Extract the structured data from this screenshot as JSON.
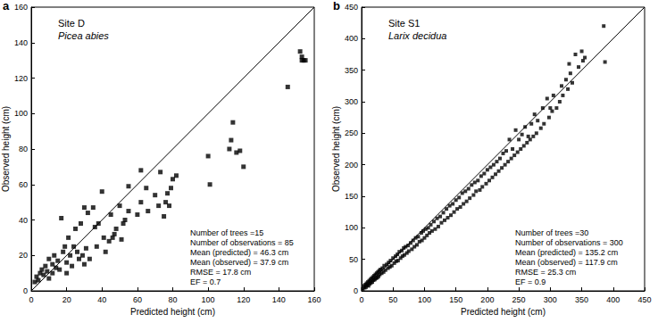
{
  "chart_data": [
    {
      "type": "scatter",
      "panel_label": "a",
      "title": "Site D",
      "subtitle": "Picea abies",
      "x_label": "Predicted height (cm)",
      "y_label": "Observed height (cm)",
      "xlim": [
        0,
        160
      ],
      "xticks": [
        0,
        20,
        40,
        60,
        80,
        100,
        120,
        140,
        160
      ],
      "ylim": [
        0,
        160
      ],
      "yticks": [
        0,
        20,
        40,
        60,
        80,
        100,
        120,
        140,
        160
      ],
      "grid": false,
      "annotations": [
        "Number of trees =15",
        "Number of observations = 85",
        "Mean (predicted) = 46.3 cm",
        "Mean (observed) = 37.9 cm",
        "RMSE = 17.8 cm",
        "EF = 0.7"
      ],
      "series": [
        {
          "type": "scatter",
          "color": "#000000",
          "marker": "square",
          "x": [
            2,
            3,
            4,
            5,
            6,
            7,
            8,
            9,
            10,
            10,
            12,
            12,
            13,
            14,
            15,
            16,
            17,
            18,
            19,
            20,
            20,
            21,
            22,
            23,
            24,
            25,
            26,
            27,
            28,
            29,
            30,
            30,
            31,
            32,
            33,
            35,
            36,
            37,
            38,
            40,
            41,
            42,
            44,
            45,
            46,
            47,
            48,
            50,
            51,
            52,
            53,
            55,
            55,
            60,
            62,
            62,
            65,
            66,
            70,
            72,
            73,
            75,
            76,
            77,
            78,
            79,
            80,
            82,
            100,
            101,
            112,
            113,
            114,
            116,
            118,
            120,
            145,
            152,
            153,
            154,
            155,
            153
          ],
          "values": [
            5,
            8,
            6,
            10,
            12,
            9,
            14,
            11,
            18,
            7,
            15,
            10,
            20,
            13,
            17,
            12,
            41,
            22,
            25,
            16,
            10,
            30,
            20,
            14,
            25,
            35,
            22,
            18,
            38,
            20,
            47,
            15,
            24,
            44,
            18,
            47,
            36,
            25,
            38,
            56,
            30,
            22,
            28,
            43,
            30,
            32,
            35,
            48,
            29,
            38,
            40,
            59,
            45,
            43,
            68,
            50,
            58,
            45,
            54,
            48,
            67,
            42,
            50,
            55,
            48,
            58,
            63,
            65,
            76,
            60,
            80,
            85,
            95,
            78,
            79,
            70,
            115,
            135,
            130,
            130,
            130,
            132
          ]
        },
        {
          "type": "line",
          "color": "#000000",
          "line_style": "solid",
          "x": [
            0,
            160
          ],
          "values": [
            0,
            160
          ]
        }
      ]
    },
    {
      "type": "scatter",
      "panel_label": "b",
      "title": "Site S1",
      "subtitle": "Larix decidua",
      "x_label": "Predicted height (cm)",
      "y_label": "Observed height (cm)",
      "xlim": [
        0,
        450
      ],
      "xticks": [
        0,
        50,
        100,
        150,
        200,
        250,
        300,
        350,
        400,
        450
      ],
      "ylim": [
        0,
        450
      ],
      "yticks": [
        0,
        50,
        100,
        150,
        200,
        250,
        300,
        350,
        400,
        450
      ],
      "grid": false,
      "annotations": [
        "Number of trees =30",
        "Number of observations = 300",
        "Mean (predicted) = 135.2 cm",
        "Mean (observed) = 117.9 cm",
        "RMSE = 25.3 cm",
        "EF = 0.9"
      ],
      "series": [
        {
          "type": "scatter",
          "color": "#000000",
          "marker": "square",
          "x": [
            2,
            4,
            5,
            6,
            7,
            8,
            9,
            10,
            11,
            12,
            13,
            14,
            15,
            16,
            17,
            18,
            19,
            20,
            21,
            22,
            23,
            24,
            25,
            26,
            27,
            28,
            29,
            30,
            32,
            33,
            35,
            36,
            38,
            40,
            42,
            43,
            45,
            46,
            48,
            50,
            52,
            54,
            55,
            57,
            58,
            60,
            62,
            64,
            65,
            67,
            68,
            70,
            72,
            74,
            75,
            78,
            80,
            82,
            84,
            86,
            88,
            90,
            92,
            95,
            96,
            98,
            100,
            102,
            104,
            106,
            108,
            110,
            112,
            115,
            117,
            120,
            122,
            125,
            127,
            130,
            132,
            135,
            137,
            140,
            142,
            145,
            147,
            150,
            152,
            155,
            157,
            160,
            162,
            165,
            167,
            170,
            172,
            175,
            178,
            180,
            182,
            185,
            188,
            190,
            192,
            195,
            198,
            200,
            203,
            205,
            208,
            210,
            213,
            215,
            218,
            220,
            223,
            225,
            228,
            230,
            233,
            235,
            238,
            240,
            243,
            245,
            248,
            250,
            253,
            255,
            258,
            260,
            263,
            265,
            268,
            270,
            273,
            275,
            278,
            280,
            285,
            288,
            290,
            295,
            298,
            300,
            303,
            305,
            310,
            315,
            318,
            320,
            325,
            328,
            330,
            332,
            335,
            340,
            345,
            350,
            352,
            355,
            385,
            387
          ],
          "values": [
            3,
            8,
            5,
            10,
            6,
            12,
            9,
            14,
            8,
            16,
            11,
            18,
            13,
            20,
            14,
            22,
            17,
            24,
            18,
            26,
            20,
            28,
            21,
            30,
            23,
            32,
            26,
            34,
            28,
            36,
            30,
            40,
            33,
            42,
            36,
            45,
            38,
            48,
            40,
            52,
            44,
            55,
            47,
            58,
            48,
            62,
            52,
            64,
            55,
            68,
            57,
            70,
            60,
            72,
            63,
            76,
            66,
            80,
            70,
            84,
            73,
            86,
            78,
            92,
            80,
            95,
            84,
            98,
            88,
            100,
            92,
            105,
            95,
            110,
            98,
            115,
            102,
            118,
            108,
            124,
            112,
            130,
            116,
            135,
            120,
            138,
            125,
            144,
            130,
            148,
            133,
            155,
            138,
            158,
            142,
            162,
            147,
            168,
            152,
            172,
            158,
            175,
            160,
            182,
            165,
            186,
            170,
            192,
            175,
            196,
            180,
            200,
            185,
            205,
            190,
            210,
            195,
            218,
            200,
            222,
            205,
            240,
            210,
            225,
            215,
            255,
            220,
            240,
            225,
            248,
            230,
            260,
            235,
            245,
            240,
            265,
            245,
            280,
            250,
            270,
            258,
            290,
            265,
            305,
            275,
            290,
            285,
            310,
            290,
            300,
            325,
            310,
            335,
            320,
            360,
            345,
            330,
            375,
            355,
            380,
            365,
            370,
            420,
            363
          ]
        },
        {
          "type": "line",
          "color": "#000000",
          "line_style": "solid",
          "x": [
            0,
            450
          ],
          "values": [
            0,
            450
          ]
        }
      ]
    }
  ]
}
